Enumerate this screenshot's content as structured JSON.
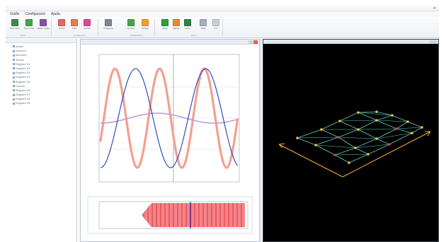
{
  "menu": {
    "items": [
      "Gràfic",
      "Configuració",
      "Ajuda"
    ]
  },
  "ribbon": {
    "groups": [
      "Gràfic",
      "Configuració",
      "Visualització",
      "Eines"
    ],
    "buttons": [
      {
        "label": "Obrir arxiu",
        "color": "#3c8c4a"
      },
      {
        "label": "Nou model",
        "color": "#46a24c"
      },
      {
        "label": "Editar model",
        "color": "#8d4fa6"
      },
      {
        "label": "Temps",
        "color": "#e06a6a"
      },
      {
        "label": "Freq",
        "color": "#e57d4a"
      },
      {
        "label": "Corbes",
        "color": "#d94c8c"
      },
      {
        "label": "Configurar",
        "color": "#7c8591"
      },
      {
        "label": "Sensors",
        "color": "#4aa24a"
      },
      {
        "label": "Sortida",
        "color": "#f0a030"
      },
      {
        "label": "Afegir",
        "color": "#2e9e3d"
      },
      {
        "label": "Marcar",
        "color": "#e38a3a"
      },
      {
        "label": "Veure",
        "color": "#2f7f4f"
      },
      {
        "label": "Taula",
        "color": "#a6b0bd"
      },
      {
        "label": "Info",
        "color": "#c8ced6"
      }
    ]
  },
  "tree": {
    "items": [
      "Model",
      "Sensors",
      "Mesures",
      "Temps",
      "Registre 01",
      "Registre 02",
      "Registre 03",
      "Registre 04",
      "Registre 05",
      "Corbes",
      "Registre 06",
      "Registre 07",
      "Registre 08",
      "Registre 09"
    ]
  },
  "center_window": {
    "title": "Gràfic temps"
  },
  "colors": {
    "sine_blue": "#1f3fbf",
    "sine_red": "#f4a090",
    "sine_purple": "#c39ad6",
    "burst_red": "#e8323a",
    "cursor": "#2040c0",
    "mesh": "#5fd0c4",
    "node_yellow": "#f2c033",
    "node_red": "#e83a3a",
    "axis_orange": "#f0b030"
  }
}
